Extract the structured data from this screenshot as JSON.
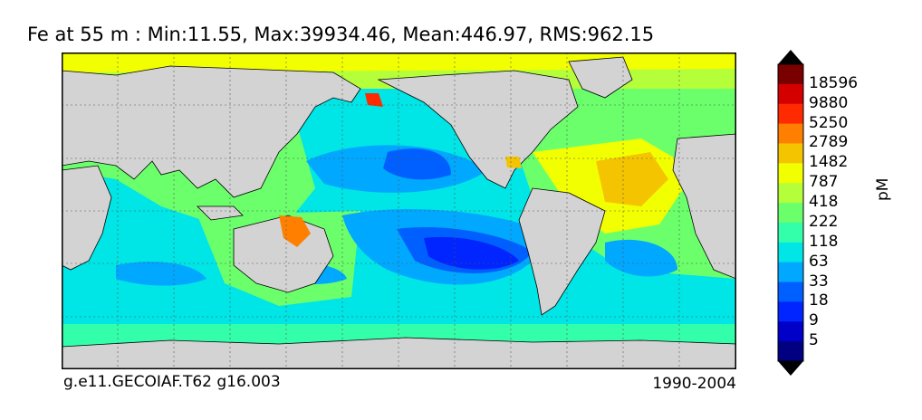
{
  "title": "Fe at 55 m : Min:11.55, Max:39934.46, Mean:446.97, RMS:962.15",
  "footer": {
    "left": "g.e11.GECOIAF.T62 g16.003",
    "right": "1990-2004"
  },
  "colorbar": {
    "unit": "pM",
    "levels": [
      "18596",
      "9880",
      "5250",
      "2789",
      "1482",
      "787",
      "418",
      "222",
      "118",
      "63",
      "33",
      "18",
      "9",
      "5"
    ],
    "colors": [
      "#7a0000",
      "#d40000",
      "#ff2a00",
      "#ff7f00",
      "#f5c400",
      "#f2ff00",
      "#b5ff3a",
      "#6bff6b",
      "#33ffaa",
      "#00e5e5",
      "#00a8ff",
      "#0060ff",
      "#0025ff",
      "#0000c8",
      "#000080"
    ]
  },
  "colors": {
    "land": "#d3d3d3",
    "background": "#ffffff"
  }
}
